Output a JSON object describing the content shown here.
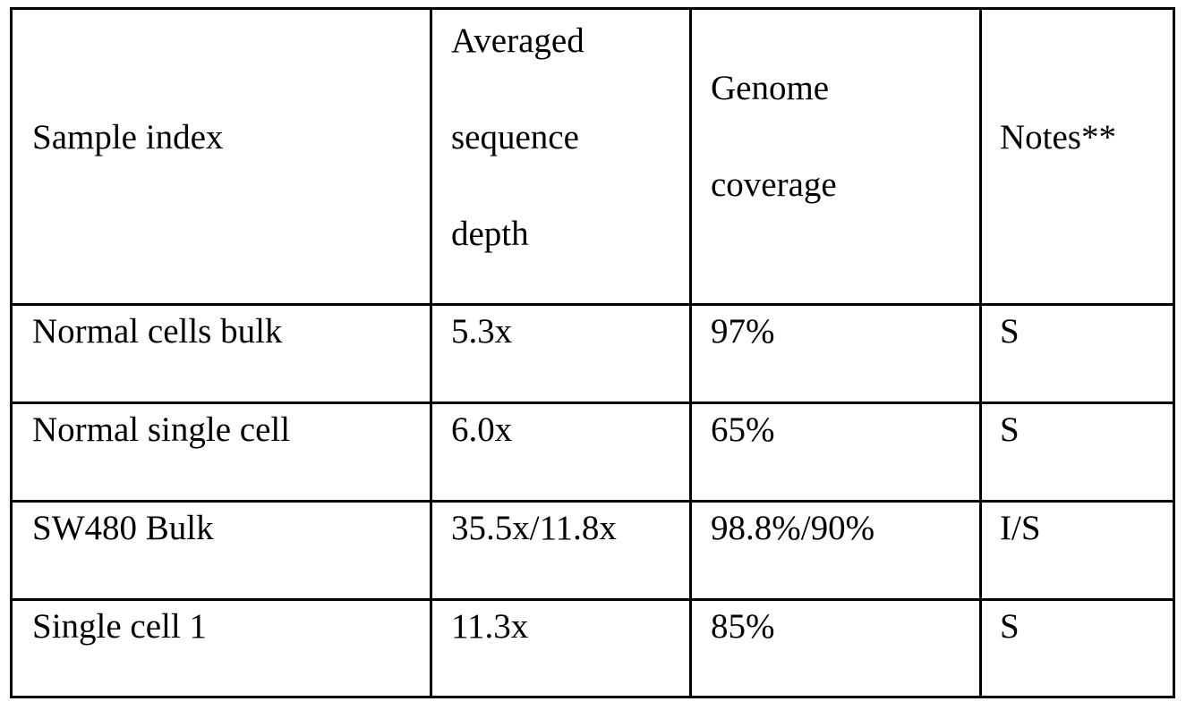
{
  "table": {
    "headers": [
      [
        "Sample index"
      ],
      [
        "Averaged",
        "sequence",
        "depth"
      ],
      [
        "Genome",
        "coverage"
      ],
      [
        "Notes**"
      ]
    ],
    "rows": [
      [
        "Normal cells bulk",
        "5.3x",
        "97%",
        "S"
      ],
      [
        "Normal single cell",
        "6.0x",
        "65%",
        "S"
      ],
      [
        "SW480 Bulk",
        "35.5x/11.8x",
        "98.8%/90%",
        "I/S"
      ],
      [
        "Single cell 1",
        "11.3x",
        "85%",
        "S"
      ]
    ]
  }
}
